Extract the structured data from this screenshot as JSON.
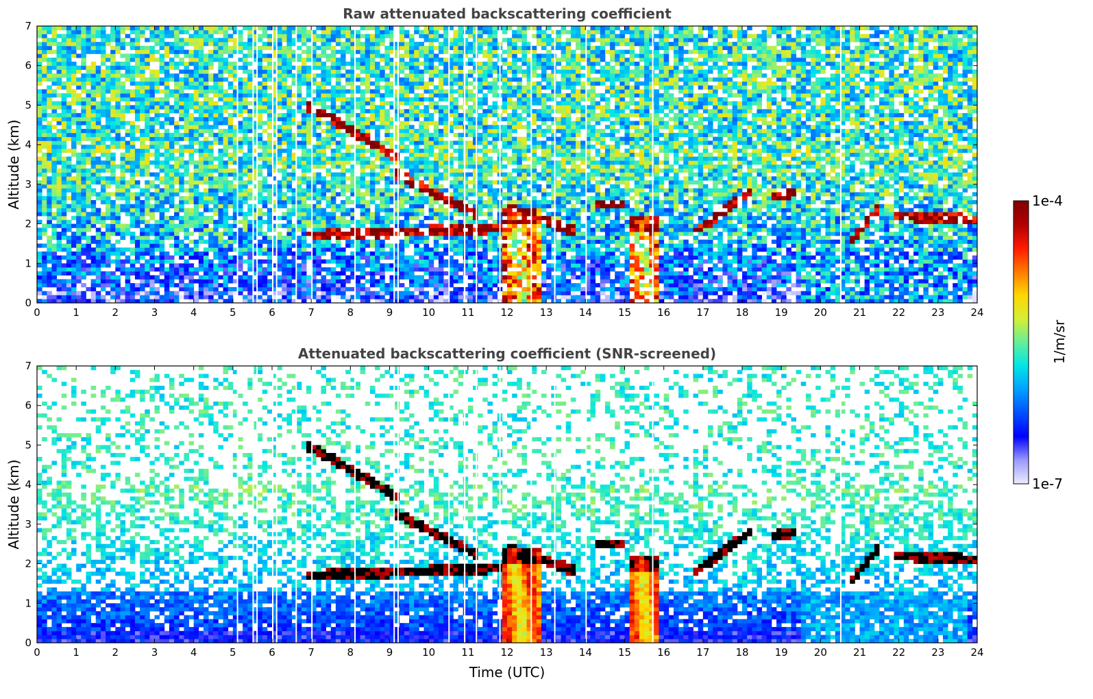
{
  "chart_data": [
    {
      "type": "heatmap",
      "title": "Raw attenuated backscattering coefficient",
      "xlabel": "",
      "ylabel": "Altitude (km)",
      "xlim": [
        0,
        24
      ],
      "ylim": [
        0,
        7
      ],
      "x_ticks": [
        "0",
        "1",
        "2",
        "3",
        "4",
        "5",
        "6",
        "7",
        "8",
        "9",
        "10",
        "11",
        "12",
        "13",
        "14",
        "15",
        "16",
        "17",
        "18",
        "19",
        "20",
        "21",
        "22",
        "23",
        "24"
      ],
      "y_ticks": [
        "0",
        "1",
        "2",
        "3",
        "4",
        "5",
        "6",
        "7"
      ],
      "grid": false,
      "screened": false
    },
    {
      "type": "heatmap",
      "title": "Attenuated backscattering coefficient (SNR-screened)",
      "xlabel": "Time (UTC)",
      "ylabel": "Altitude (km)",
      "xlim": [
        0,
        24
      ],
      "ylim": [
        0,
        7
      ],
      "x_ticks": [
        "0",
        "1",
        "2",
        "3",
        "4",
        "5",
        "6",
        "7",
        "8",
        "9",
        "10",
        "11",
        "12",
        "13",
        "14",
        "15",
        "16",
        "17",
        "18",
        "19",
        "20",
        "21",
        "22",
        "23",
        "24"
      ],
      "y_ticks": [
        "0",
        "1",
        "2",
        "3",
        "4",
        "5",
        "6",
        "7"
      ],
      "grid": false,
      "screened": true
    }
  ],
  "colorbar": {
    "label": "1/m/sr",
    "max_label": "1e-4",
    "min_label": "1e-7",
    "scale": "log",
    "colormap": [
      "#ececff",
      "#9a9aff",
      "#0000ff",
      "#0050ff",
      "#00a0ff",
      "#00e6e6",
      "#66ee99",
      "#d6ee33",
      "#ffd700",
      "#ff7a00",
      "#ff1a00",
      "#b00000",
      "#800000"
    ]
  },
  "features": {
    "cloud_layers": [
      {
        "t0": 6.9,
        "t1": 9.2,
        "alt0": 5.0,
        "alt1": 3.7
      },
      {
        "t0": 9.1,
        "t1": 11.3,
        "alt0": 3.3,
        "alt1": 2.2
      },
      {
        "t0": 6.9,
        "t1": 12.0,
        "alt0": 1.7,
        "alt1": 1.9
      },
      {
        "t0": 12.0,
        "t1": 13.8,
        "alt0": 2.4,
        "alt1": 1.8
      },
      {
        "t0": 14.3,
        "t1": 15.0,
        "alt0": 2.5,
        "alt1": 2.5
      },
      {
        "t0": 16.8,
        "t1": 18.2,
        "alt0": 1.8,
        "alt1": 2.8
      },
      {
        "t0": 18.8,
        "t1": 19.4,
        "alt0": 2.7,
        "alt1": 2.8
      },
      {
        "t0": 20.8,
        "t1": 21.5,
        "alt0": 1.6,
        "alt1": 2.4
      },
      {
        "t0": 21.9,
        "t1": 24.0,
        "alt0": 2.2,
        "alt1": 2.1
      }
    ],
    "precip_columns": [
      {
        "t0": 11.9,
        "t1": 12.9,
        "top": 2.4
      },
      {
        "t0": 15.1,
        "t1": 15.9,
        "top": 2.2
      }
    ],
    "boundary_layer_top_km": 1.3
  }
}
